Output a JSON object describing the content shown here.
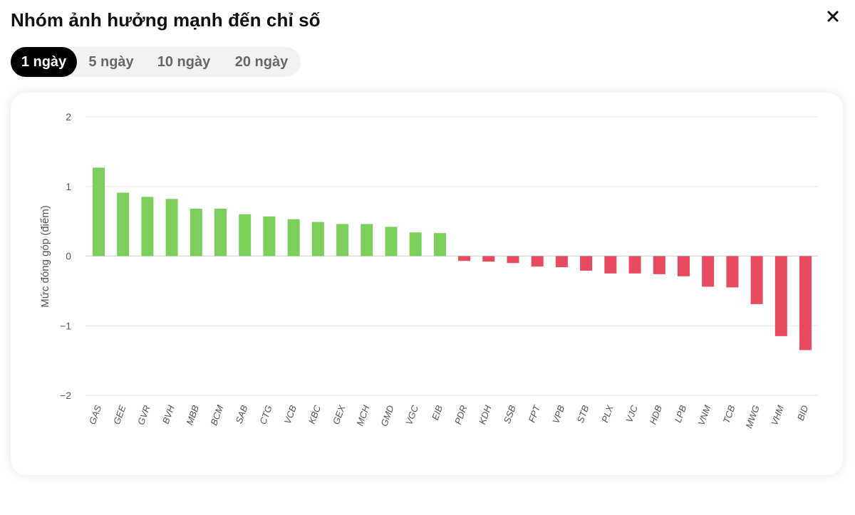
{
  "header": {
    "title": "Nhóm ảnh hưởng mạnh đến chỉ số",
    "close_icon": "close-icon"
  },
  "tabs": [
    {
      "label": "1 ngày",
      "active": true
    },
    {
      "label": "5 ngày",
      "active": false
    },
    {
      "label": "10 ngày",
      "active": false
    },
    {
      "label": "20 ngày",
      "active": false
    }
  ],
  "chart_data": {
    "type": "bar",
    "ylabel": "Mức đóng góp (điểm)",
    "xlabel": "",
    "ylim": [
      -2,
      2
    ],
    "yticks": [
      2,
      1,
      0,
      -1,
      -2
    ],
    "ytick_labels": [
      "2",
      "1",
      "0",
      "−1",
      "−2"
    ],
    "grid": true,
    "positive_color": "#7ccf5b",
    "negative_color": "#e84a5f",
    "categories": [
      "GAS",
      "GEE",
      "GVR",
      "BVH",
      "MBB",
      "BCM",
      "SAB",
      "CTG",
      "VCB",
      "KBC",
      "GEX",
      "MCH",
      "GMD",
      "VGC",
      "EIB",
      "PDR",
      "KDH",
      "SSB",
      "FPT",
      "VPB",
      "STB",
      "PLX",
      "VJC",
      "HDB",
      "LPB",
      "VNM",
      "TCB",
      "MWG",
      "VHM",
      "BID"
    ],
    "values": [
      1.27,
      0.91,
      0.85,
      0.82,
      0.68,
      0.68,
      0.6,
      0.57,
      0.53,
      0.49,
      0.46,
      0.46,
      0.42,
      0.34,
      0.33,
      -0.07,
      -0.08,
      -0.1,
      -0.15,
      -0.16,
      -0.21,
      -0.25,
      -0.25,
      -0.26,
      -0.29,
      -0.44,
      -0.45,
      -0.69,
      -1.15,
      -1.35
    ]
  }
}
